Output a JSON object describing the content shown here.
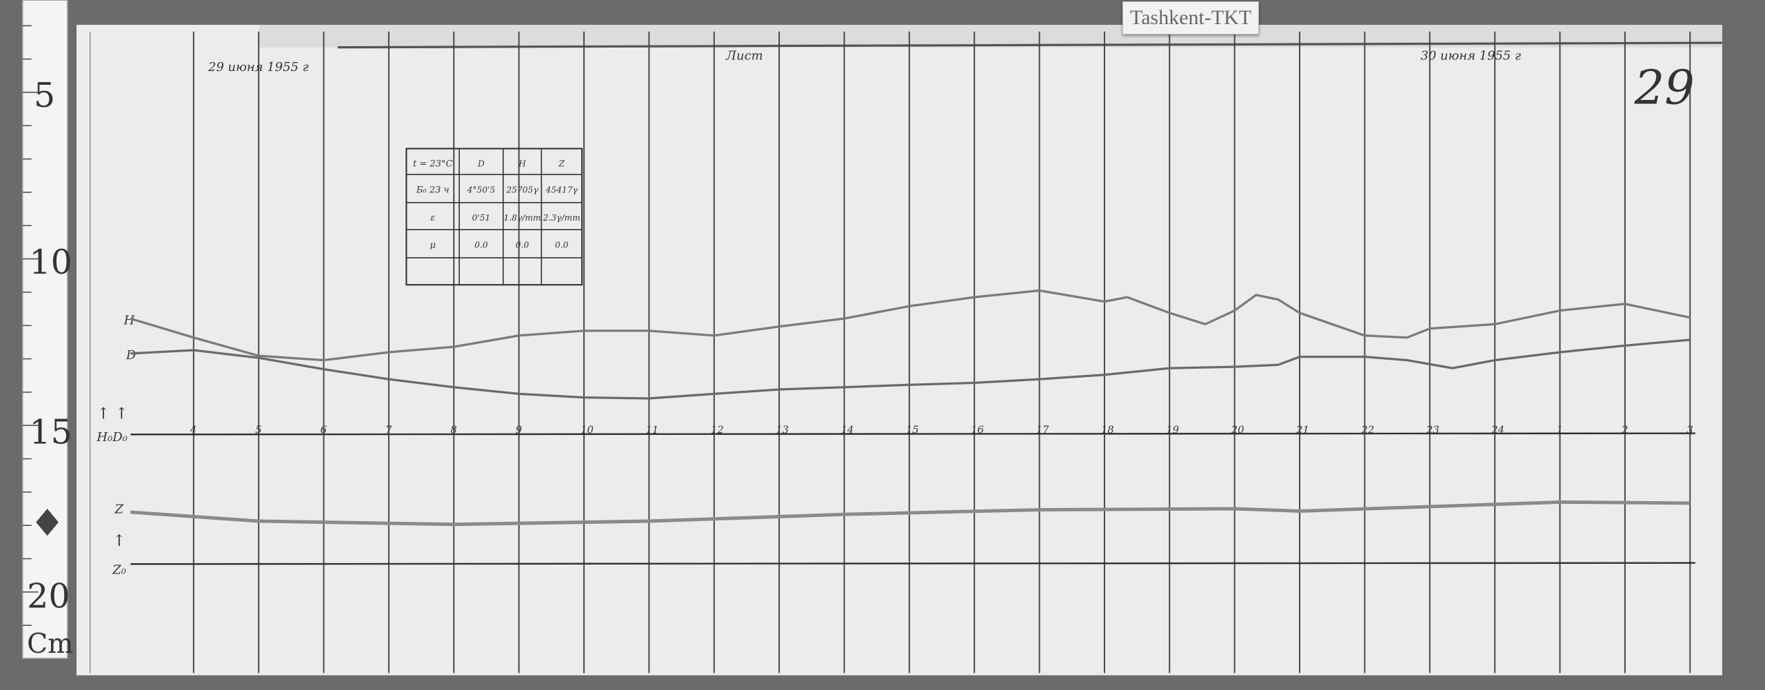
{
  "station_label": "Tashkent-TKT",
  "sheet_number": "29",
  "header": {
    "date_start": "29 июня 1955 г",
    "center_note": "Лист",
    "date_end": "30 июня 1955 г"
  },
  "ruler": {
    "labels": [
      "5",
      "10",
      "15",
      "20"
    ],
    "unit": "Cm"
  },
  "trace_labels": {
    "H": "H",
    "D": "D",
    "baseline_HD": "H₀D₀",
    "Z": "Z",
    "baseline_Z": "Z₀"
  },
  "constants_table": {
    "header": [
      "t = 23°C",
      "D",
      "H",
      "Z"
    ],
    "rows": [
      [
        "Б₀ 23 ч",
        "4°50'5",
        "25705γ",
        "45417γ"
      ],
      [
        "ε",
        "0'51",
        "1.8γ/mm",
        "2.3γ/mm"
      ],
      [
        "μ",
        "0.0",
        "0.0",
        "0.0"
      ],
      [
        "",
        "",
        "",
        ""
      ]
    ]
  },
  "chart_data": {
    "type": "line",
    "x_unit": "hour",
    "y_unit": "cm (ruler)",
    "hour_ticks": [
      "4",
      "5",
      "6",
      "7",
      "8",
      "9",
      "10",
      "11",
      "12",
      "13",
      "14",
      "15",
      "16",
      "17",
      "18",
      "19",
      "20",
      "21",
      "22",
      "23",
      "24",
      "1",
      "2",
      "3"
    ],
    "baselines": {
      "H0D0": 15.27,
      "Z0": 19.16
    },
    "series": [
      {
        "name": "H",
        "color": "#7a7a7a",
        "x": [
          3.03,
          4,
          5,
          6,
          7,
          8,
          9,
          10,
          11,
          12,
          13,
          14,
          15,
          16,
          17,
          18,
          18.35,
          19,
          19.55,
          20,
          20.33,
          20.67,
          21,
          22,
          22.65,
          23,
          24,
          25,
          26,
          27
        ],
        "y": [
          11.79,
          12.36,
          12.91,
          13.04,
          12.8,
          12.64,
          12.3,
          12.16,
          12.16,
          12.3,
          12.03,
          11.79,
          11.42,
          11.15,
          10.95,
          11.28,
          11.15,
          11.62,
          11.96,
          11.55,
          11.08,
          11.22,
          11.62,
          12.3,
          12.36,
          12.09,
          11.96,
          11.55,
          11.35,
          11.76
        ]
      },
      {
        "name": "D",
        "color": "#6a6a6a",
        "x": [
          3.03,
          4,
          5,
          6,
          7,
          8,
          9,
          10,
          11,
          12,
          13,
          14,
          15,
          16,
          17,
          18,
          19,
          20,
          20.67,
          21,
          22,
          22.65,
          23.35,
          24,
          25,
          26,
          27
        ],
        "y": [
          12.84,
          12.74,
          12.97,
          13.31,
          13.61,
          13.85,
          14.05,
          14.16,
          14.19,
          14.05,
          13.92,
          13.85,
          13.78,
          13.72,
          13.61,
          13.48,
          13.28,
          13.24,
          13.18,
          12.94,
          12.94,
          13.04,
          13.28,
          13.04,
          12.8,
          12.6,
          12.43
        ]
      },
      {
        "name": "Z",
        "color": "#8a8a8a",
        "x": [
          3.03,
          5,
          8,
          11,
          14,
          17,
          20,
          21,
          25,
          27
        ],
        "y": [
          17.6,
          17.87,
          17.97,
          17.87,
          17.67,
          17.53,
          17.5,
          17.57,
          17.3,
          17.33
        ]
      }
    ]
  }
}
